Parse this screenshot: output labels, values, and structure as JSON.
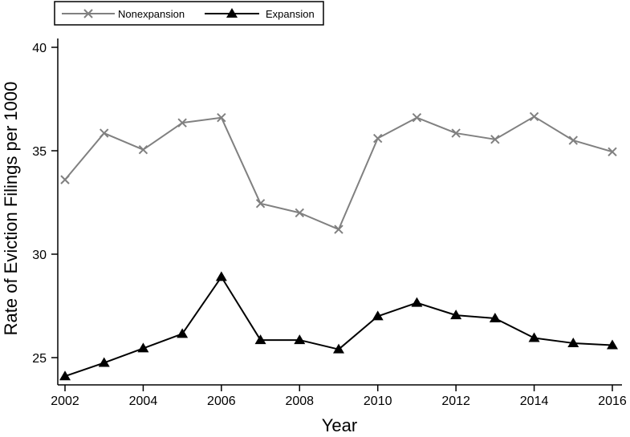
{
  "chart_data": {
    "type": "line",
    "title": "",
    "xlabel": "Year",
    "ylabel": "Rate of Eviction Filings per 1000",
    "x": [
      2002,
      2003,
      2004,
      2005,
      2006,
      2007,
      2008,
      2009,
      2010,
      2011,
      2012,
      2013,
      2014,
      2015,
      2016
    ],
    "xlim": [
      2002,
      2016
    ],
    "ylim": [
      23.9,
      41.5
    ],
    "xticks": [
      "2002",
      "2004",
      "2006",
      "2008",
      "2010",
      "2012",
      "2014",
      "2016"
    ],
    "yticks": [
      "25",
      "30",
      "35",
      "40"
    ],
    "grid": false,
    "legend_position": "top-left",
    "series": [
      {
        "name": "Nonexpansion",
        "marker": "x",
        "color": "#808080",
        "values": [
          33.6,
          35.85,
          35.05,
          36.35,
          36.6,
          32.45,
          32.0,
          31.2,
          35.6,
          36.6,
          35.85,
          35.55,
          36.65,
          35.5,
          34.95
        ]
      },
      {
        "name": "Expansion",
        "marker": "triangle",
        "color": "#000000",
        "values": [
          24.1,
          24.75,
          25.45,
          26.15,
          28.9,
          25.85,
          25.85,
          25.4,
          27.0,
          27.65,
          27.05,
          26.9,
          25.95,
          25.7,
          25.6
        ]
      }
    ]
  }
}
